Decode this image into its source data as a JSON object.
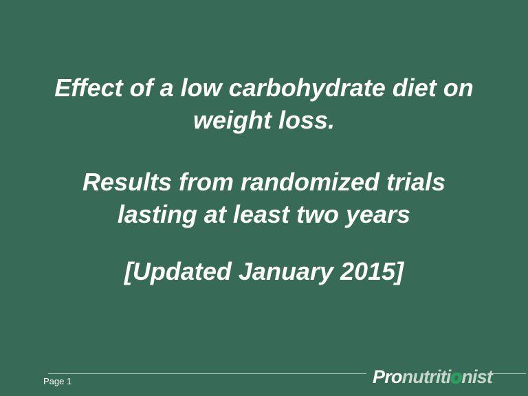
{
  "theme": {
    "bg": "#386B57",
    "text": "#FFFFFF",
    "logo_muted": "#C4D9CC",
    "logo_dot": "#2E9B60",
    "rule": "#A9C6B8"
  },
  "slide": {
    "title": {
      "line1": "Effect of a low carbohydrate diet on",
      "line2": "weight loss."
    },
    "subtitle": {
      "line1": "Results from randomized trials",
      "line2": "lasting at least two years"
    },
    "updated": "[Updated January 2015]"
  },
  "footer": {
    "page_label": "Page 1",
    "logo": {
      "pro": "Pro",
      "nutriti": "nutriti",
      "o": "o",
      "nist": "nist"
    }
  }
}
